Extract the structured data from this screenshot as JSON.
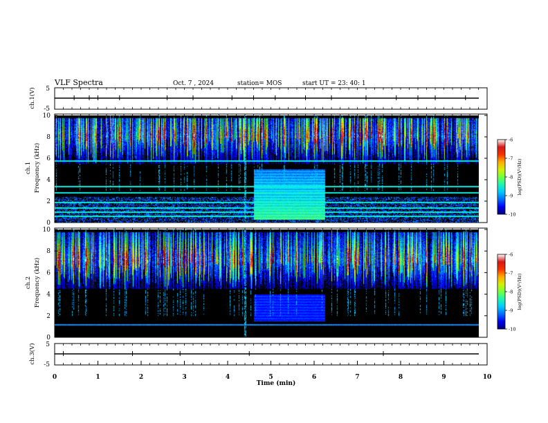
{
  "header": {
    "title": "VLF Spectra",
    "date": "Oct. 7 , 2024",
    "station": "station= MOS",
    "start": "start UT = 23: 40: 1"
  },
  "colors": {
    "background": "#000000",
    "colormap": [
      "#00007a",
      "#0000ff",
      "#0088ff",
      "#00e8ff",
      "#30ff80",
      "#b8ff00",
      "#ffd800",
      "#ff4000",
      "#d00000",
      "#ffffff"
    ]
  },
  "chart_data": [
    {
      "type": "line",
      "name": "ch1-voltage",
      "ylabel": "ch.1(V)",
      "ylim": [
        -5,
        5
      ],
      "yticks": [
        "5",
        "-5"
      ],
      "xlim": [
        0,
        10
      ],
      "baseline": 0,
      "spike_times": [
        0.45,
        0.8,
        1.0,
        1.5,
        2.6,
        3.2,
        4.1,
        4.6,
        5.1,
        5.8,
        6.4,
        7.2,
        7.9,
        8.4,
        8.8,
        9.5
      ]
    },
    {
      "type": "heatmap",
      "name": "ch1-spectrogram",
      "ylabel": "ch.1\nFrequency (kHz)",
      "ylim": [
        0,
        10
      ],
      "yticks": [
        "0",
        "2",
        "4",
        "6",
        "8",
        "10"
      ],
      "xlim": [
        0,
        9.8
      ],
      "colorbar": {
        "label": "log(PSD)(V²/Hz)",
        "range": [
          -10,
          -6
        ],
        "ticks": [
          "-6",
          "-7",
          "-8",
          "-9",
          "-10"
        ]
      },
      "features": {
        "sferic_band_khz": [
          5.5,
          9.8
        ],
        "tone_lines_khz": [
          0.6,
          1.0,
          1.4,
          1.9,
          2.8,
          3.4,
          5.8
        ],
        "broadband_block_min": [
          4.6,
          6.25
        ],
        "broadband_block_khz": [
          0.3,
          5.0
        ],
        "impulse_min": 4.4
      }
    },
    {
      "type": "heatmap",
      "name": "ch2-spectrogram",
      "ylabel": "ch.2\nFrequency (kHz)",
      "ylim": [
        0,
        10
      ],
      "yticks": [
        "0",
        "2",
        "4",
        "6",
        "8",
        "10"
      ],
      "xlim": [
        0,
        9.8
      ],
      "colorbar": {
        "label": "log(PSD)(V²/Hz)",
        "range": [
          -10,
          -6
        ],
        "ticks": [
          "-6",
          "-7",
          "-8",
          "-9",
          "-10"
        ]
      },
      "features": {
        "sferic_band_khz": [
          4.5,
          9.8
        ],
        "tone_lines_khz": [
          1.2
        ],
        "broadband_block_min": [
          4.6,
          6.25
        ],
        "broadband_block_khz": [
          1.5,
          4.0
        ],
        "impulse_min": 4.4
      }
    },
    {
      "type": "line",
      "name": "ch3-voltage",
      "ylabel": "ch.3(V)",
      "ylim": [
        -5,
        5
      ],
      "yticks": [
        "5",
        "-5"
      ],
      "xlim": [
        0,
        10
      ],
      "baseline": 0,
      "spike_times": [
        0.2,
        1.8,
        2.9,
        4.5,
        7.6
      ]
    }
  ],
  "xaxis": {
    "label": "Time (min)",
    "range": [
      0,
      10
    ],
    "ticks": [
      "0",
      "1",
      "2",
      "3",
      "4",
      "5",
      "6",
      "7",
      "8",
      "9",
      "10"
    ]
  }
}
